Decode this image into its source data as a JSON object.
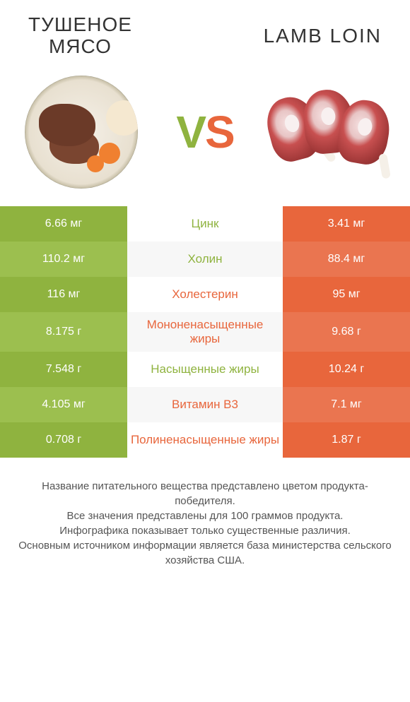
{
  "header": {
    "left_title": "ТУШЕНОЕ\nМЯСО",
    "right_title": "LAMB LOIN",
    "vs_text": "VS"
  },
  "colors": {
    "left": "#8fb33f",
    "left_alt": "#9cbf4f",
    "right": "#e8663c",
    "right_alt": "#ea7550",
    "background": "#ffffff"
  },
  "rows": [
    {
      "left": "6.66 мг",
      "label": "Цинк",
      "right": "3.41 мг",
      "winner": "left"
    },
    {
      "left": "110.2 мг",
      "label": "Холин",
      "right": "88.4 мг",
      "winner": "left"
    },
    {
      "left": "116 мг",
      "label": "Холестерин",
      "right": "95 мг",
      "winner": "right"
    },
    {
      "left": "8.175 г",
      "label": "Мононенасыщенные жиры",
      "right": "9.68 г",
      "winner": "right"
    },
    {
      "left": "7.548 г",
      "label": "Насыщенные жиры",
      "right": "10.24 г",
      "winner": "left"
    },
    {
      "left": "4.105 мг",
      "label": "Витамин B3",
      "right": "7.1 мг",
      "winner": "right"
    },
    {
      "left": "0.708 г",
      "label": "Полиненасыщенные жиры",
      "right": "1.87 г",
      "winner": "right"
    }
  ],
  "footer": {
    "line1": "Название питательного вещества представлено цветом продукта-победителя.",
    "line2": "Все значения представлены для 100 граммов продукта.",
    "line3": "Инфографика показывает только существенные различия.",
    "line4": "Основным источником информации является база министерства сельского хозяйства США."
  }
}
